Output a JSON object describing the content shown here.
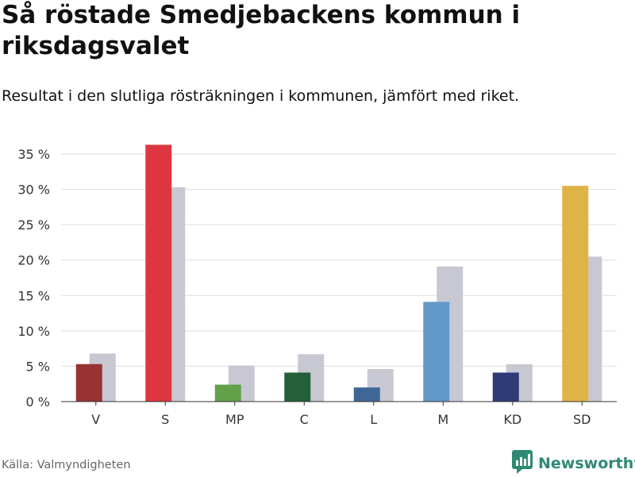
{
  "header": {
    "title": "Så röstade Smedjebackens kommun i riksdagsvalet",
    "subtitle": "Resultat i den slutliga rösträkningen i kommunen, jämfört med riket."
  },
  "footer": {
    "source": "Källa: Valmyndigheten",
    "brand": "Newsworthy",
    "brand_color": "#2f8a73",
    "brand_icon": "bar-chart-speech-bubble-icon"
  },
  "chart_data": {
    "type": "bar",
    "title": "Så röstade Smedjebackens kommun i riksdagsvalet",
    "subtitle": "Resultat i den slutliga rösträkningen i kommunen, jämfört med riket.",
    "xlabel": "",
    "ylabel": "",
    "ylim": [
      0,
      35
    ],
    "yticks": [
      0,
      5,
      10,
      15,
      20,
      25,
      30,
      35
    ],
    "ytick_labels": [
      "0 %",
      "5 %",
      "10 %",
      "15 %",
      "20 %",
      "25 %",
      "30 %",
      "35 %"
    ],
    "grid": true,
    "categories": [
      "V",
      "S",
      "MP",
      "C",
      "L",
      "M",
      "KD",
      "SD"
    ],
    "series": [
      {
        "name": "Smedjebackens kommun",
        "values": [
          5.3,
          36.3,
          2.4,
          4.1,
          2.0,
          14.1,
          4.1,
          30.5
        ],
        "colors": [
          "#993333",
          "#dd3640",
          "#63a04a",
          "#235f37",
          "#3f6796",
          "#6299c8",
          "#2e3b76",
          "#dfb446"
        ]
      },
      {
        "name": "Riket",
        "values": [
          6.8,
          30.3,
          5.1,
          6.7,
          4.6,
          19.1,
          5.3,
          20.5
        ],
        "color": "#c8c8d2"
      }
    ]
  }
}
